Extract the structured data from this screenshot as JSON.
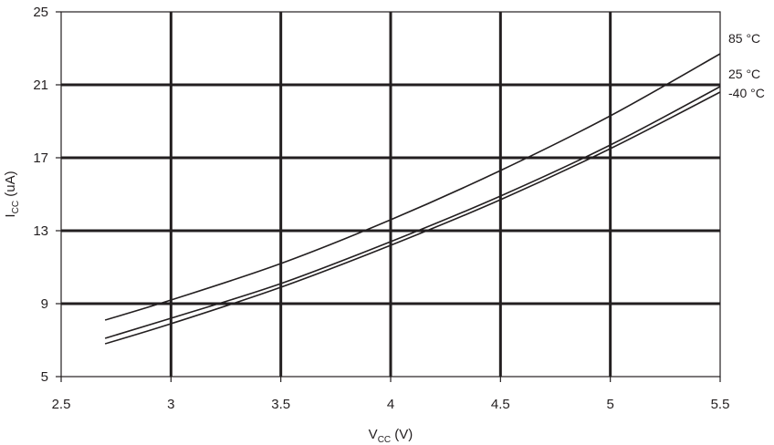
{
  "chart_data": {
    "type": "line",
    "title": "",
    "xlabel": {
      "main": "V",
      "sub": "CC",
      "suffix": " (V)"
    },
    "ylabel": {
      "main": "I",
      "sub": "CC",
      "suffix": " (uA)"
    },
    "xlim": [
      2.5,
      5.5
    ],
    "ylim": [
      5,
      25
    ],
    "x_ticks": [
      "2.5",
      "3",
      "3.5",
      "4",
      "4.5",
      "5",
      "5.5"
    ],
    "y_ticks": [
      "5",
      "9",
      "13",
      "17",
      "21",
      "25"
    ],
    "grid": true,
    "legend": "right-end labels",
    "x": [
      2.7,
      3.0,
      3.5,
      4.0,
      4.5,
      5.0,
      5.5
    ],
    "series": [
      {
        "name": "85 °C",
        "values": [
          8.1,
          9.2,
          11.2,
          13.6,
          16.3,
          19.3,
          22.7
        ]
      },
      {
        "name": "25 °C",
        "values": [
          7.1,
          8.2,
          10.1,
          12.4,
          14.9,
          17.7,
          20.9
        ]
      },
      {
        "name": "-40 °C",
        "values": [
          6.8,
          7.9,
          9.9,
          12.2,
          14.7,
          17.5,
          20.6
        ]
      }
    ],
    "colors": {
      "line": "#231f20",
      "grid": "#231f20",
      "background": "#ffffff"
    }
  }
}
